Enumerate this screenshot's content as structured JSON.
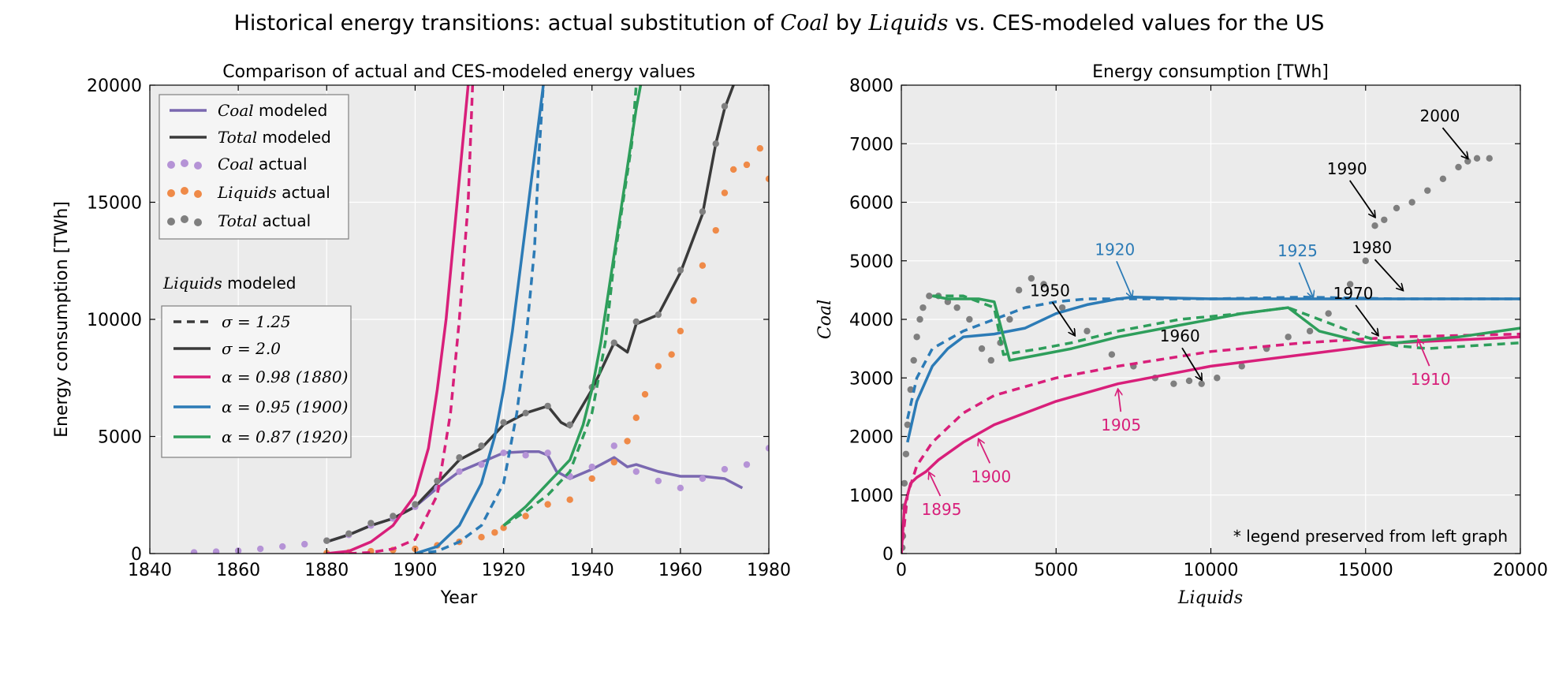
{
  "figure": {
    "title_prefix": "Historical energy transitions: actual substitution of ",
    "title_coal": "Coal",
    "title_by": " by ",
    "title_liquids": "Liquids",
    "title_suffix": " vs. CES-modeled values for the US"
  },
  "colors": {
    "coal": "#7a68b0",
    "total": "#3a3a3a",
    "coal_actual": "#b593d6",
    "liquids_actual": "#ef8a48",
    "total_actual": "#7f7f7f",
    "pink": "#d81f7a",
    "blue": "#2c7bb6",
    "green": "#2e9e5b",
    "axes_bg": "#ebebeb",
    "grid": "#ffffff"
  },
  "chart_data": [
    {
      "type": "line",
      "title": "Comparison of actual and CES-modeled energy values",
      "xlabel": "Year",
      "ylabel": "Energy consumption [TWh]",
      "xlim": [
        1840,
        1980
      ],
      "ylim": [
        0,
        20000
      ],
      "xticks": [
        "1840",
        "1860",
        "1880",
        "1900",
        "1920",
        "1940",
        "1960",
        "1980"
      ],
      "yticks": [
        "0",
        "5000",
        "10000",
        "15000",
        "20000"
      ],
      "grid": true,
      "legend_top": {
        "placement": "top-left",
        "entries": [
          {
            "math": "Coal",
            "text": " modeled"
          },
          {
            "math": "Total",
            "text": " modeled"
          },
          {
            "math": "Coal",
            "text": " actual"
          },
          {
            "math": "Liquids",
            "text": " actual"
          },
          {
            "math": "Total",
            "text": " actual"
          }
        ]
      },
      "legend_bottom": {
        "title_math": "Liquids",
        "title_text": " modeled",
        "entries": [
          {
            "label": "σ = 1.25"
          },
          {
            "label": "σ = 2.0"
          },
          {
            "label": "α = 0.98 (1880)"
          },
          {
            "label": "α = 0.95 (1900)"
          },
          {
            "label": "α = 0.87 (1920)"
          }
        ]
      },
      "series": [
        {
          "name": "Coal modeled",
          "style": "solid",
          "color_key": "coal",
          "x": [
            1880,
            1885,
            1890,
            1895,
            1900,
            1905,
            1910,
            1915,
            1920,
            1925,
            1928,
            1930,
            1932,
            1935,
            1940,
            1945,
            1948,
            1950,
            1955,
            1960,
            1965,
            1970,
            1974
          ],
          "y": [
            500,
            800,
            1200,
            1500,
            2000,
            2800,
            3500,
            3900,
            4300,
            4350,
            4350,
            4200,
            3500,
            3200,
            3600,
            4100,
            3700,
            3800,
            3500,
            3300,
            3300,
            3200,
            2800
          ]
        },
        {
          "name": "Total modeled",
          "style": "solid",
          "color_key": "total",
          "x": [
            1880,
            1885,
            1890,
            1895,
            1900,
            1905,
            1910,
            1915,
            1920,
            1925,
            1930,
            1933,
            1935,
            1940,
            1945,
            1948,
            1950,
            1955,
            1960,
            1965,
            1968,
            1970,
            1972
          ],
          "y": [
            500,
            800,
            1200,
            1500,
            2000,
            3000,
            4000,
            4500,
            5500,
            6000,
            6300,
            5600,
            5400,
            7000,
            9000,
            8600,
            9800,
            10200,
            12000,
            14500,
            17500,
            19000,
            20000
          ]
        },
        {
          "name": "Coal actual",
          "style": "dots",
          "color_key": "coal_actual",
          "x": [
            1850,
            1855,
            1860,
            1865,
            1870,
            1875,
            1880,
            1885,
            1890,
            1895,
            1900,
            1905,
            1910,
            1915,
            1920,
            1925,
            1930,
            1935,
            1940,
            1945,
            1950,
            1955,
            1960,
            1965,
            1970,
            1975,
            1980
          ],
          "y": [
            50,
            80,
            120,
            200,
            300,
            400,
            550,
            800,
            1200,
            1500,
            2000,
            2800,
            3500,
            3800,
            4300,
            4200,
            4300,
            3300,
            3700,
            4600,
            3500,
            3100,
            2800,
            3200,
            3600,
            3800,
            4500
          ]
        },
        {
          "name": "Liquids actual",
          "style": "dots",
          "color_key": "liquids_actual",
          "x": [
            1880,
            1885,
            1890,
            1895,
            1900,
            1905,
            1910,
            1915,
            1918,
            1920,
            1925,
            1930,
            1935,
            1940,
            1945,
            1948,
            1950,
            1952,
            1955,
            1958,
            1960,
            1963,
            1965,
            1968,
            1970,
            1972,
            1975,
            1978,
            1980
          ],
          "y": [
            20,
            50,
            100,
            150,
            200,
            350,
            500,
            700,
            900,
            1100,
            1600,
            2100,
            2300,
            3200,
            3900,
            4800,
            5800,
            6800,
            8000,
            8500,
            9500,
            10800,
            12300,
            13800,
            15400,
            16400,
            16600,
            17300,
            16000
          ]
        },
        {
          "name": "Total actual",
          "style": "dots",
          "color_key": "total_actual",
          "x": [
            1880,
            1885,
            1890,
            1895,
            1900,
            1905,
            1910,
            1915,
            1920,
            1925,
            1930,
            1935,
            1940,
            1945,
            1950,
            1955,
            1960,
            1965,
            1968,
            1970
          ],
          "y": [
            550,
            850,
            1300,
            1600,
            2100,
            3100,
            4100,
            4600,
            5600,
            6000,
            6300,
            5500,
            7100,
            9000,
            9900,
            10200,
            12100,
            14600,
            17500,
            19100
          ]
        },
        {
          "name": "α = 0.98 (1880) σ = 2.0",
          "style": "solid",
          "color_key": "pink",
          "x": [
            1880,
            1885,
            1890,
            1895,
            1900,
            1903,
            1905,
            1907,
            1909,
            1911,
            1912
          ],
          "y": [
            0,
            100,
            500,
            1200,
            2500,
            4500,
            7000,
            10000,
            14000,
            18000,
            20000
          ]
        },
        {
          "name": "α = 0.98 (1880) σ = 1.25",
          "style": "dash",
          "color_key": "pink",
          "x": [
            1885,
            1890,
            1895,
            1900,
            1905,
            1908,
            1910,
            1912,
            1913
          ],
          "y": [
            0,
            50,
            200,
            600,
            2500,
            6000,
            10000,
            15000,
            20000
          ]
        },
        {
          "name": "α = 0.95 (1900) σ = 2.0",
          "style": "solid",
          "color_key": "blue",
          "x": [
            1900,
            1905,
            1910,
            1915,
            1918,
            1920,
            1922,
            1924,
            1926,
            1928,
            1929
          ],
          "y": [
            0,
            300,
            1200,
            3000,
            5000,
            7000,
            9500,
            12500,
            15500,
            18500,
            20000
          ]
        },
        {
          "name": "α = 0.95 (1900) σ = 1.25",
          "style": "dash",
          "color_key": "blue",
          "x": [
            1900,
            1905,
            1910,
            1915,
            1920,
            1923,
            1925,
            1927,
            1928,
            1929
          ],
          "y": [
            0,
            100,
            500,
            1200,
            3000,
            6000,
            9000,
            13000,
            17000,
            20000
          ]
        },
        {
          "name": "α = 0.87 (1920) σ = 2.0",
          "style": "solid",
          "color_key": "green",
          "x": [
            1920,
            1925,
            1930,
            1935,
            1938,
            1940,
            1942,
            1944,
            1946,
            1948,
            1950,
            1951
          ],
          "y": [
            1200,
            2000,
            3000,
            4000,
            5500,
            7000,
            9000,
            11500,
            14000,
            16500,
            19000,
            20000
          ]
        },
        {
          "name": "α = 0.87 (1920) σ = 1.25",
          "style": "dash",
          "color_key": "green",
          "x": [
            1920,
            1925,
            1930,
            1935,
            1940,
            1943,
            1945,
            1947,
            1949,
            1950
          ],
          "y": [
            1200,
            1800,
            2500,
            3500,
            6000,
            9000,
            12500,
            15000,
            17500,
            20000
          ]
        }
      ]
    },
    {
      "type": "line",
      "title": "Energy consumption [TWh]",
      "xlabel": "Liquids",
      "ylabel": "Coal",
      "xlim": [
        0,
        20000
      ],
      "ylim": [
        0,
        8000
      ],
      "xticks": [
        "0",
        "5000",
        "10000",
        "15000",
        "20000"
      ],
      "yticks": [
        "0",
        "1000",
        "2000",
        "3000",
        "4000",
        "5000",
        "6000",
        "7000",
        "8000"
      ],
      "grid": true,
      "note": "* legend preserved from left graph",
      "series": [
        {
          "name": "actual",
          "style": "dots",
          "color_key": "total_actual",
          "x": [
            30,
            50,
            80,
            100,
            150,
            200,
            300,
            400,
            500,
            600,
            700,
            900,
            1200,
            1500,
            1800,
            2200,
            2600,
            2900,
            3200,
            3500,
            3800,
            4200,
            4600,
            5200,
            6000,
            6800,
            7500,
            8200,
            8800,
            9300,
            9700,
            10200,
            11000,
            11800,
            12500,
            13200,
            13800,
            14500,
            15000,
            15300,
            15600,
            16000,
            16500,
            17000,
            17500,
            18000,
            18300,
            18600,
            19000
          ],
          "y": [
            100,
            300,
            800,
            1200,
            1700,
            2200,
            2800,
            3300,
            3700,
            4000,
            4200,
            4400,
            4400,
            4300,
            4200,
            4000,
            3500,
            3300,
            3600,
            4000,
            4500,
            4700,
            4600,
            4200,
            3800,
            3400,
            3200,
            3000,
            2900,
            2950,
            2900,
            3000,
            3200,
            3500,
            3700,
            3800,
            4100,
            4600,
            5000,
            5600,
            5700,
            5900,
            6000,
            6200,
            6400,
            6600,
            6700,
            6750,
            6750
          ]
        },
        {
          "name": "pink solid",
          "style": "solid",
          "color_key": "pink",
          "x": [
            0,
            100,
            300,
            500,
            800,
            1200,
            2000,
            3000,
            5000,
            7000,
            10000,
            13000,
            16000,
            20000
          ],
          "y": [
            0,
            800,
            1200,
            1300,
            1400,
            1600,
            1900,
            2200,
            2600,
            2900,
            3200,
            3400,
            3600,
            3700
          ]
        },
        {
          "name": "pink dashed",
          "style": "dash",
          "color_key": "pink",
          "x": [
            0,
            200,
            500,
            1000,
            2000,
            3000,
            5000,
            7000,
            10000,
            13000,
            16000,
            20000
          ],
          "y": [
            0,
            1000,
            1500,
            1900,
            2400,
            2700,
            3000,
            3200,
            3450,
            3600,
            3700,
            3750
          ]
        },
        {
          "name": "blue solid",
          "style": "solid",
          "color_key": "blue",
          "x": [
            200,
            500,
            1000,
            1500,
            2000,
            3000,
            4000,
            5000,
            6000,
            7000,
            7500,
            10000,
            13000,
            16000,
            20000
          ],
          "y": [
            1900,
            2600,
            3200,
            3500,
            3700,
            3750,
            3850,
            4100,
            4250,
            4350,
            4380,
            4350,
            4350,
            4350,
            4350
          ]
        },
        {
          "name": "blue dashed",
          "style": "dash",
          "color_key": "blue",
          "x": [
            200,
            500,
            1000,
            2000,
            3000,
            4000,
            5000,
            6000,
            7000,
            10000,
            13000,
            16000,
            20000
          ],
          "y": [
            2300,
            3000,
            3500,
            3800,
            4000,
            4200,
            4300,
            4350,
            4350,
            4350,
            4380,
            4350,
            4350
          ]
        },
        {
          "name": "green solid",
          "style": "solid",
          "color_key": "green",
          "x": [
            1000,
            1500,
            2000,
            2500,
            3000,
            3500,
            4500,
            5500,
            7000,
            9000,
            11000,
            12500,
            13500,
            15000,
            16000,
            18000,
            20000
          ],
          "y": [
            4400,
            4350,
            4350,
            4350,
            4300,
            3300,
            3400,
            3500,
            3700,
            3900,
            4100,
            4200,
            3800,
            3600,
            3600,
            3700,
            3850
          ]
        },
        {
          "name": "green dashed",
          "style": "dash",
          "color_key": "green",
          "x": [
            1000,
            1500,
            2000,
            2500,
            3000,
            3300,
            4500,
            5500,
            7000,
            9000,
            11000,
            12500,
            13500,
            15000,
            16000,
            17000,
            20000
          ],
          "y": [
            4400,
            4400,
            4400,
            4300,
            4200,
            3400,
            3500,
            3600,
            3800,
            4000,
            4100,
            4200,
            4000,
            3700,
            3550,
            3500,
            3600
          ]
        }
      ],
      "annotations": [
        {
          "text": "2000",
          "color_key": "black"
        },
        {
          "text": "1990",
          "color_key": "black"
        },
        {
          "text": "1980",
          "color_key": "black"
        },
        {
          "text": "1970",
          "color_key": "black"
        },
        {
          "text": "1960",
          "color_key": "black"
        },
        {
          "text": "1950",
          "color_key": "black"
        },
        {
          "text": "1920",
          "color_key": "blue"
        },
        {
          "text": "1925",
          "color_key": "blue"
        },
        {
          "text": "1910",
          "color_key": "pink"
        },
        {
          "text": "1905",
          "color_key": "pink"
        },
        {
          "text": "1900",
          "color_key": "pink"
        },
        {
          "text": "1895",
          "color_key": "pink"
        }
      ]
    }
  ]
}
